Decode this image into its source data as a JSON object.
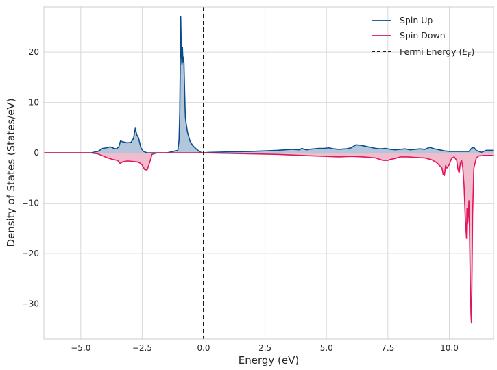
{
  "chart_data": {
    "type": "area",
    "title": "",
    "xlabel": "Energy (eV)",
    "ylabel": "Density of States (States/eV)",
    "xlim": [
      -6.5,
      11.8
    ],
    "ylim": [
      -37,
      29
    ],
    "grid": true,
    "legend_position": "top-right",
    "xticks": [
      -5.0,
      -2.5,
      0.0,
      2.5,
      5.0,
      7.5,
      10.0
    ],
    "xtick_labels": [
      "−5.0",
      "−2.5",
      "0.0",
      "2.5",
      "5.0",
      "7.5",
      "10.0"
    ],
    "yticks": [
      -30,
      -20,
      -10,
      0,
      10,
      20
    ],
    "ytick_labels": [
      "−30",
      "−20",
      "−10",
      "0",
      "10",
      "20"
    ],
    "fermi_energy": 0.0,
    "fermi_label_main": "Fermi Energy (",
    "fermi_label_sym": "E",
    "fermi_label_sub": "F",
    "fermi_label_end": ")",
    "series": [
      {
        "name": "Spin Up",
        "color": "#0d4a8c",
        "fill": "#aec4d9",
        "x": [
          -6.5,
          -4.6,
          -4.3,
          -4.1,
          -3.95,
          -3.8,
          -3.65,
          -3.55,
          -3.45,
          -3.38,
          -3.3,
          -3.1,
          -2.95,
          -2.85,
          -2.78,
          -2.72,
          -2.65,
          -2.55,
          -2.45,
          -2.3,
          -1.5,
          -1.05,
          -1.0,
          -0.97,
          -0.93,
          -0.9,
          -0.88,
          -0.86,
          -0.84,
          -0.82,
          -0.8,
          -0.78,
          -0.76,
          -0.74,
          -0.7,
          -0.65,
          -0.55,
          -0.45,
          -0.35,
          -0.25,
          -0.15,
          -0.05,
          0.2,
          1.0,
          2.0,
          3.0,
          3.3,
          3.6,
          3.9,
          4.0,
          4.1,
          4.2,
          4.3,
          4.5,
          4.7,
          4.9,
          5.1,
          5.3,
          5.5,
          5.8,
          6.0,
          6.2,
          6.4,
          6.6,
          6.8,
          7.0,
          7.2,
          7.4,
          7.6,
          7.8,
          8.0,
          8.2,
          8.4,
          8.6,
          8.8,
          9.0,
          9.2,
          9.4,
          9.6,
          9.8,
          10.0,
          10.5,
          10.8,
          10.9,
          11.0,
          11.1,
          11.3,
          11.5,
          11.8
        ],
        "values": [
          0,
          0,
          0.3,
          0.9,
          1.0,
          1.2,
          0.9,
          0.8,
          1.2,
          2.4,
          2.2,
          2.0,
          2.1,
          2.9,
          4.9,
          3.6,
          3.0,
          1.0,
          0.3,
          0,
          0,
          0.5,
          2.5,
          8.0,
          27.0,
          19.0,
          17.5,
          21.0,
          18.0,
          19.0,
          18.0,
          14.0,
          10.0,
          7.0,
          5.5,
          4.0,
          2.3,
          1.5,
          1.0,
          0.6,
          0.2,
          0,
          0.1,
          0.2,
          0.3,
          0.5,
          0.6,
          0.7,
          0.6,
          0.9,
          0.7,
          0.6,
          0.7,
          0.8,
          0.9,
          0.9,
          1.0,
          0.8,
          0.7,
          0.8,
          1.0,
          1.6,
          1.5,
          1.3,
          1.1,
          0.9,
          0.8,
          0.9,
          0.7,
          0.6,
          0.7,
          0.8,
          0.6,
          0.7,
          0.8,
          0.7,
          1.1,
          0.8,
          0.6,
          0.4,
          0.3,
          0.3,
          0.3,
          0.9,
          1.1,
          0.5,
          0.1,
          0.5,
          0.5
        ]
      },
      {
        "name": "Spin Down",
        "color": "#e0185a",
        "fill": "#f1b8cc",
        "x": [
          -6.5,
          -4.6,
          -4.3,
          -4.1,
          -3.9,
          -3.7,
          -3.5,
          -3.4,
          -3.3,
          -3.1,
          -2.9,
          -2.7,
          -2.6,
          -2.5,
          -2.4,
          -2.3,
          -2.2,
          -2.1,
          -1.9,
          -1.5,
          -1.0,
          0.0,
          1.0,
          2.0,
          3.0,
          3.5,
          4.0,
          4.5,
          5.0,
          5.5,
          6.0,
          6.5,
          7.0,
          7.3,
          7.5,
          7.6,
          7.8,
          8.0,
          8.3,
          8.6,
          9.0,
          9.3,
          9.5,
          9.6,
          9.7,
          9.75,
          9.8,
          9.85,
          9.9,
          10.0,
          10.1,
          10.2,
          10.3,
          10.35,
          10.4,
          10.45,
          10.5,
          10.55,
          10.6,
          10.65,
          10.7,
          10.72,
          10.75,
          10.8,
          10.82,
          10.85,
          10.88,
          10.9,
          10.92,
          10.95,
          11.0,
          11.1,
          11.2,
          11.4,
          11.6,
          11.8
        ],
        "values": [
          0,
          0,
          -0.2,
          -0.6,
          -1.0,
          -1.3,
          -1.5,
          -2.1,
          -1.8,
          -1.6,
          -1.7,
          -1.8,
          -2.0,
          -2.4,
          -3.3,
          -3.4,
          -2.0,
          -0.3,
          0,
          0,
          0,
          0,
          -0.1,
          -0.2,
          -0.3,
          -0.4,
          -0.5,
          -0.6,
          -0.7,
          -0.8,
          -0.7,
          -0.8,
          -1.0,
          -1.5,
          -1.5,
          -1.3,
          -1.1,
          -0.8,
          -0.8,
          -0.9,
          -1.0,
          -1.4,
          -2.0,
          -2.5,
          -3.0,
          -4.3,
          -4.5,
          -2.5,
          -3.0,
          -2.3,
          -1.0,
          -0.8,
          -1.5,
          -3.2,
          -4.0,
          -2.0,
          -1.5,
          -3.0,
          -6.5,
          -13.0,
          -17.0,
          -11.0,
          -14.0,
          -9.5,
          -15.0,
          -25.0,
          -32.0,
          -33.8,
          -26.0,
          -12.0,
          -3.0,
          -1.0,
          -0.6,
          -0.5,
          -0.5,
          -0.5
        ]
      }
    ]
  }
}
